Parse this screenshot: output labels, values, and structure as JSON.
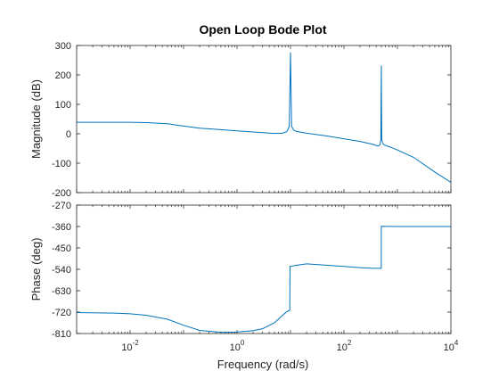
{
  "chart_data": [
    {
      "type": "line",
      "name": "magnitude",
      "title": "Open Loop Bode Plot",
      "ylabel": "Magnitude (dB)",
      "xscale": "log",
      "xlim": [
        0.001,
        10000
      ],
      "ylim": [
        -200,
        300
      ],
      "yticks": [
        300,
        200,
        100,
        0,
        -100,
        -200
      ],
      "grid": false,
      "series_color": "#0072BD",
      "x": [
        0.001,
        0.005,
        0.01,
        0.02,
        0.05,
        0.1,
        0.2,
        0.5,
        1,
        2,
        5,
        7,
        8.5,
        9.5,
        10,
        10.5,
        11.5,
        13,
        20,
        50,
        100,
        200,
        350,
        430,
        470,
        490,
        500,
        510,
        530,
        570,
        650,
        800,
        1000,
        2000,
        5000,
        10000
      ],
      "y": [
        39,
        39,
        39,
        38,
        34,
        26,
        19,
        14,
        10,
        6,
        1,
        2,
        7,
        25,
        276,
        25,
        12,
        8,
        2,
        -8,
        -17,
        -26,
        -36,
        -42,
        -38,
        -20,
        232,
        -20,
        -32,
        -38,
        -42,
        -48,
        -55,
        -80,
        -130,
        -165
      ]
    },
    {
      "type": "line",
      "name": "phase",
      "xlabel": "Frequency  (rad/s)",
      "ylabel": "Phase (deg)",
      "xscale": "log",
      "xlim": [
        0.001,
        10000
      ],
      "ylim": [
        -810,
        -270
      ],
      "yticks": [
        -270,
        -360,
        -450,
        -540,
        -630,
        -720,
        -810
      ],
      "xtick_labels": [
        {
          "base": "10",
          "exp": "-2",
          "value": 0.01
        },
        {
          "base": "10",
          "exp": "0",
          "value": 1
        },
        {
          "base": "10",
          "exp": "2",
          "value": 100
        },
        {
          "base": "10",
          "exp": "4",
          "value": 10000
        }
      ],
      "grid": false,
      "series_color": "#0072BD",
      "x": [
        0.001,
        0.005,
        0.01,
        0.02,
        0.05,
        0.1,
        0.2,
        0.5,
        1,
        2,
        3,
        5,
        7,
        8.5,
        9.7,
        9.8,
        10.2,
        12,
        20,
        50,
        100,
        200,
        350,
        499,
        500,
        1000,
        10000
      ],
      "y": [
        -722,
        -724,
        -727,
        -733,
        -750,
        -775,
        -797,
        -805,
        -804,
        -798,
        -790,
        -765,
        -735,
        -718,
        -712,
        -528,
        -528,
        -524,
        -517,
        -523,
        -528,
        -533,
        -536,
        -536,
        -359,
        -360,
        -360
      ]
    }
  ]
}
